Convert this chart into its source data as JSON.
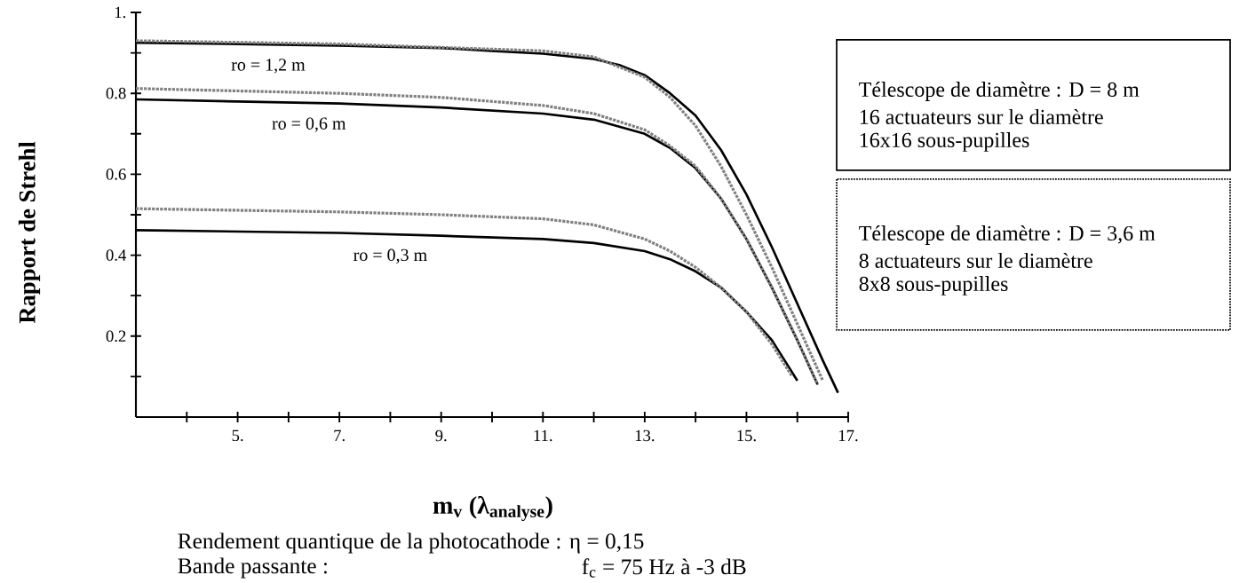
{
  "chart_data": {
    "type": "line",
    "ylabel": "Rapport de Strehl",
    "xlabel": "m$_{v}$ (λ$_{analyse}$)",
    "xlim": [
      3,
      17
    ],
    "ylim": [
      0,
      1
    ],
    "xticks": [
      {
        "value": 4,
        "label": null
      },
      {
        "value": 5,
        "label": "5."
      },
      {
        "value": 6,
        "label": null
      },
      {
        "value": 7,
        "label": "7."
      },
      {
        "value": 8,
        "label": null
      },
      {
        "value": 9,
        "label": "9."
      },
      {
        "value": 10,
        "label": null
      },
      {
        "value": 11,
        "label": "11."
      },
      {
        "value": 12,
        "label": null
      },
      {
        "value": 13,
        "label": "13."
      },
      {
        "value": 14,
        "label": null
      },
      {
        "value": 15,
        "label": "15."
      },
      {
        "value": 16,
        "label": null
      },
      {
        "value": 17,
        "label": "17."
      }
    ],
    "yticks": [
      {
        "value": 0.1,
        "label": null
      },
      0.2,
      {
        "value": 0.3,
        "label": null
      },
      0.4,
      {
        "value": 0.5,
        "label": null
      },
      0.6,
      {
        "value": 0.7,
        "label": null
      },
      0.8,
      {
        "value": 0.9,
        "label": null
      },
      {
        "value": 1,
        "label": "1."
      }
    ],
    "series": [
      {
        "color": "#000000",
        "line_style": "solid",
        "x": [
          3,
          5,
          7,
          9,
          10,
          11,
          12,
          12.5,
          13,
          13.5,
          14,
          14.5,
          15,
          15.5,
          16,
          16.5,
          16.8
        ],
        "values": [
          0.925,
          0.922,
          0.918,
          0.912,
          0.905,
          0.898,
          0.885,
          0.87,
          0.845,
          0.8,
          0.745,
          0.66,
          0.55,
          0.42,
          0.28,
          0.14,
          0.06
        ]
      },
      {
        "color": "#808080",
        "line_style": "dotted",
        "x": [
          3,
          7,
          11,
          12,
          13,
          13.5,
          14,
          14.5,
          15,
          15.5,
          16,
          16.5
        ],
        "values": [
          0.93,
          0.922,
          0.905,
          0.89,
          0.84,
          0.79,
          0.72,
          0.62,
          0.5,
          0.37,
          0.23,
          0.09
        ]
      },
      {
        "color": "#000000",
        "line_style": "solid",
        "x": [
          3,
          5,
          7,
          9,
          11,
          12,
          13,
          13.5,
          14,
          14.5,
          15,
          15.5,
          16,
          16.4
        ],
        "values": [
          0.785,
          0.78,
          0.775,
          0.765,
          0.75,
          0.735,
          0.7,
          0.665,
          0.615,
          0.54,
          0.44,
          0.32,
          0.19,
          0.08
        ]
      },
      {
        "color": "#808080",
        "line_style": "dotted",
        "x": [
          3,
          7,
          9,
          11,
          12,
          13,
          13.5,
          14,
          14.5,
          15,
          15.5,
          16,
          16.4
        ],
        "values": [
          0.812,
          0.8,
          0.79,
          0.77,
          0.75,
          0.71,
          0.67,
          0.62,
          0.54,
          0.44,
          0.32,
          0.19,
          0.08
        ]
      },
      {
        "color": "#000000",
        "line_style": "solid",
        "x": [
          3,
          7,
          9,
          11,
          12,
          13,
          13.5,
          14,
          14.5,
          15,
          15.5,
          16
        ],
        "values": [
          0.462,
          0.455,
          0.448,
          0.44,
          0.43,
          0.41,
          0.39,
          0.36,
          0.32,
          0.26,
          0.19,
          0.09
        ]
      },
      {
        "color": "#808080",
        "line_style": "dotted",
        "x": [
          3,
          7,
          9,
          11,
          12,
          13,
          13.5,
          14,
          14.5,
          15,
          15.5,
          15.9
        ],
        "values": [
          0.515,
          0.507,
          0.5,
          0.49,
          0.475,
          0.44,
          0.41,
          0.37,
          0.32,
          0.26,
          0.18,
          0.1
        ]
      }
    ],
    "annotations": [
      {
        "text": "ro = 1,2 m",
        "x": 5.6,
        "y": 0.922
      },
      {
        "text": "ro = 0,6 m",
        "x": 6.4,
        "y": 0.777
      },
      {
        "text": "ro = 0,3 m",
        "x": 8,
        "y": 0.452
      },
      "Télescope de diamètre :  D = 8 m",
      "16 actuateurs sur le diamètre",
      "16x16 sous-pupilles",
      "Télescope de diamètre :  D = 3,6 m",
      "8 actuateurs sur le diamètre",
      "8x8 sous-pupilles",
      "Rendement quantique de la photocathode :  η = 0,15",
      "Bande passante :",
      "f$_{c}$ = 75 Hz à -3 dB"
    ]
  }
}
